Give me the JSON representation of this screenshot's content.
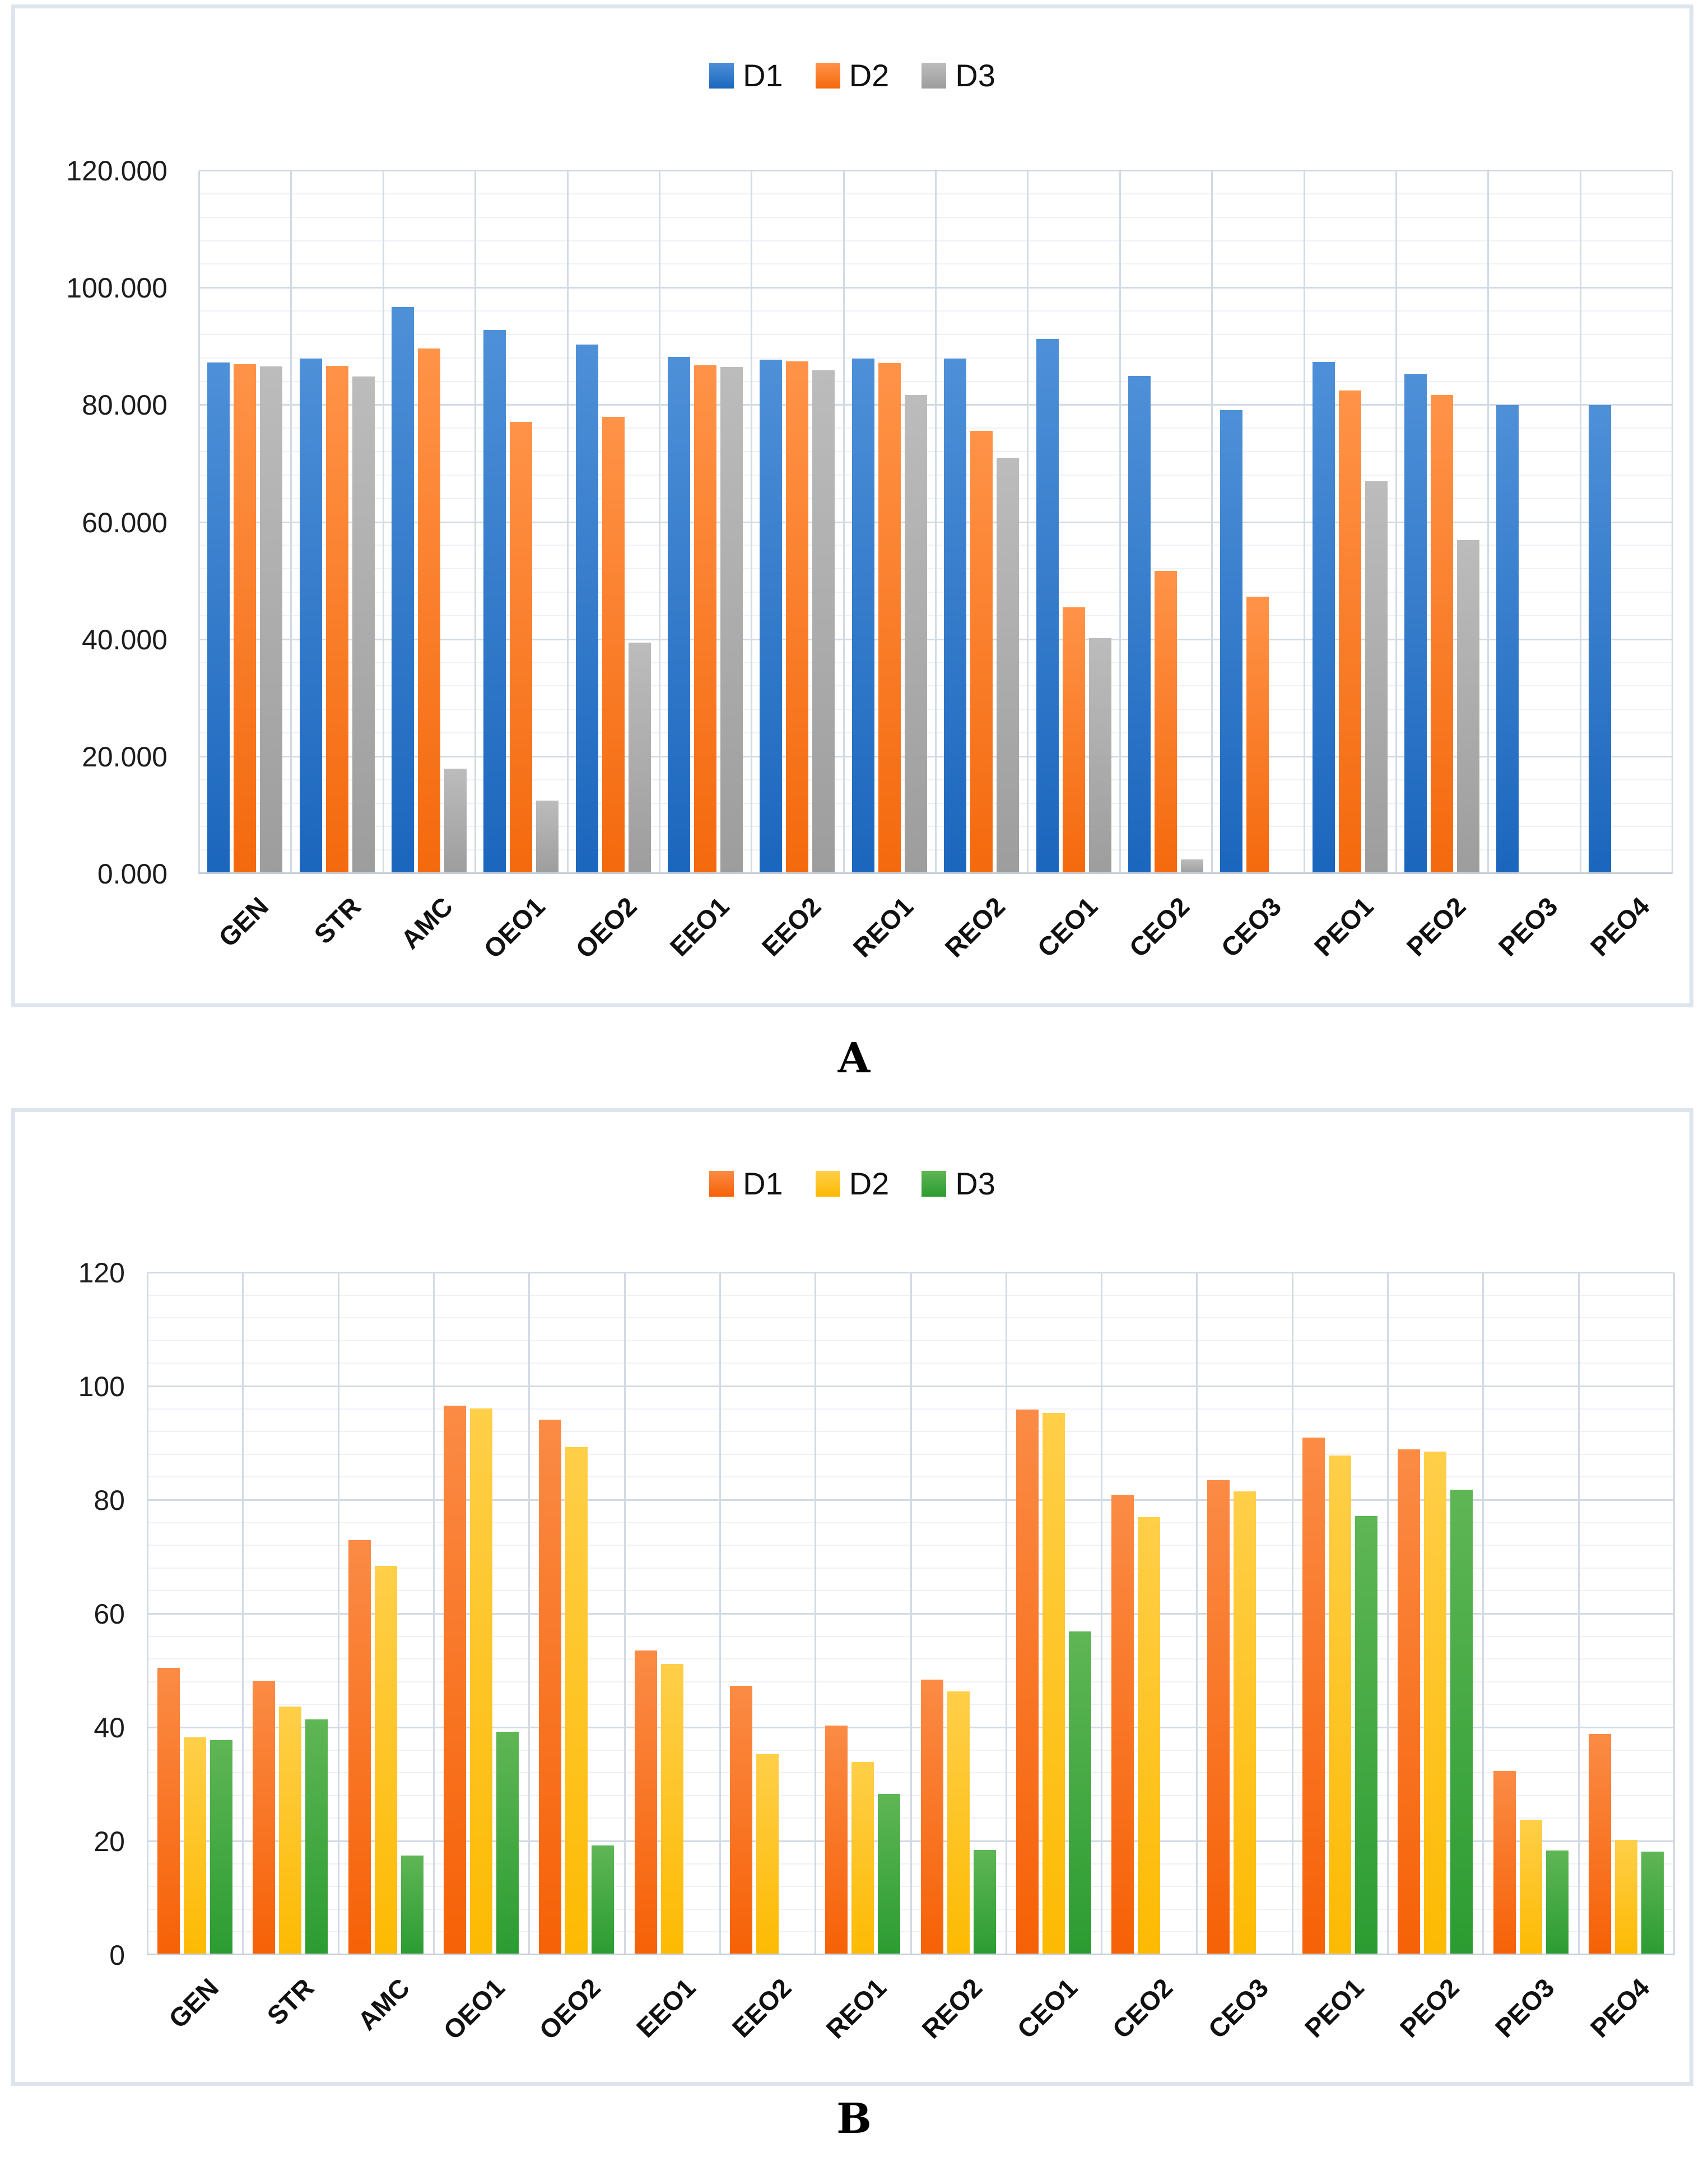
{
  "panels": [
    {
      "caption": "A"
    },
    {
      "caption": "B"
    }
  ],
  "chart_data": [
    {
      "type": "bar",
      "panel": "A",
      "title": "",
      "legend_position": "top-center",
      "grid": true,
      "xlabel": "",
      "ylabel": "",
      "ylim": [
        0,
        120
      ],
      "ytick_step": 20,
      "yminor_step": 4,
      "ytick_labels": [
        "0.000",
        "20.000",
        "40.000",
        "60.000",
        "80.000",
        "100.000",
        "120.000"
      ],
      "categories": [
        "GEN",
        "STR",
        "AMC",
        "OEO1",
        "OEO2",
        "EEO1",
        "EEO2",
        "REO1",
        "REO2",
        "CEO1",
        "CEO2",
        "CEO3",
        "PEO1",
        "PEO2",
        "PEO3",
        "PEO4"
      ],
      "series": [
        {
          "name": "D1",
          "color_top": "#4e90d8",
          "color_bottom": "#1b66bd",
          "legend_color": "#2272c3",
          "values": [
            87.3,
            88.0,
            96.8,
            92.8,
            90.4,
            88.3,
            87.8,
            88.0,
            88.0,
            91.3,
            85.0,
            79.2,
            87.4,
            85.3,
            80.0,
            80.0
          ]
        },
        {
          "name": "D2",
          "color_top": "#ff9348",
          "color_bottom": "#f4690d",
          "legend_color": "#f97b20",
          "values": [
            87.0,
            86.7,
            89.7,
            77.2,
            78.0,
            86.8,
            87.5,
            87.2,
            75.6,
            45.5,
            51.7,
            47.3,
            82.5,
            81.8,
            null,
            null
          ]
        },
        {
          "name": "D3",
          "color_top": "#bcbcbc",
          "color_bottom": "#9d9d9d",
          "legend_color": "#a9a9a9",
          "values": [
            86.6,
            84.9,
            18.0,
            12.5,
            39.5,
            86.5,
            86.0,
            81.8,
            71.0,
            40.3,
            2.5,
            null,
            67.0,
            57.0,
            null,
            null
          ]
        }
      ]
    },
    {
      "type": "bar",
      "panel": "B",
      "title": "",
      "legend_position": "top-center",
      "grid": true,
      "xlabel": "",
      "ylabel": "",
      "ylim": [
        0,
        120
      ],
      "ytick_step": 20,
      "yminor_step": 4,
      "ytick_labels": [
        "0",
        "20",
        "40",
        "60",
        "80",
        "100",
        "120"
      ],
      "categories": [
        "GEN",
        "STR",
        "AMC",
        "OEO1",
        "OEO2",
        "EEO1",
        "EEO2",
        "REO1",
        "REO2",
        "CEO1",
        "CEO2",
        "CEO3",
        "PEO1",
        "PEO2",
        "PEO3",
        "PEO4"
      ],
      "series": [
        {
          "name": "D1",
          "color_top": "#fb8b45",
          "color_bottom": "#f66106",
          "legend_color": "#f9701c",
          "values": [
            50.5,
            48.3,
            73.0,
            96.7,
            94.2,
            53.6,
            47.4,
            40.4,
            48.5,
            96.0,
            81.0,
            83.5,
            91.0,
            89.0,
            32.4,
            38.9
          ]
        },
        {
          "name": "D2",
          "color_top": "#ffcf49",
          "color_bottom": "#fdba02",
          "legend_color": "#fdc307",
          "values": [
            38.3,
            43.7,
            68.5,
            96.2,
            89.4,
            51.2,
            35.4,
            34.0,
            46.4,
            95.4,
            77.0,
            81.6,
            87.9,
            88.6,
            23.8,
            20.3
          ]
        },
        {
          "name": "D3",
          "color_top": "#5fb654",
          "color_bottom": "#2b9c31",
          "legend_color": "#3aa33a",
          "values": [
            37.8,
            41.5,
            17.5,
            39.3,
            19.3,
            null,
            null,
            28.4,
            18.5,
            56.9,
            null,
            null,
            77.2,
            81.9,
            18.4,
            18.2
          ]
        }
      ]
    }
  ],
  "grid_colors": {
    "major": "#d2dae4",
    "minor": "#eef1f6",
    "axis": "#c5cfdb"
  }
}
